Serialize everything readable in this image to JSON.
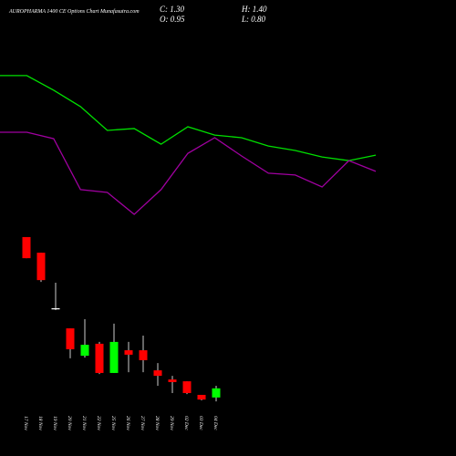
{
  "chart_data": [
    {
      "type": "line",
      "ylim": [
        0,
        16
      ],
      "series": [
        {
          "color": "#00e000",
          "values": [
            13.29,
            13.29,
            12.73,
            12.1,
            11.19,
            11.26,
            10.66,
            11.33,
            11.01,
            10.91,
            10.59,
            10.42,
            10.17,
            10.03,
            10.24
          ]
        },
        {
          "color": "#a000a0",
          "values": [
            11.12,
            11.12,
            10.87,
            8.92,
            8.81,
            7.97,
            8.92,
            10.31,
            10.91,
            10.21,
            9.55,
            9.48,
            9.02,
            10.03,
            9.62
          ]
        }
      ]
    },
    {
      "type": "candlestick",
      "title": "AUROPHARMA 1400 CE Options Chart Munafasutra.com",
      "ohlc_labels": [
        "C: 1.30",
        "H: 1.40",
        "O: 0.95",
        "L: 0.80"
      ],
      "ylim": [
        0,
        16
      ],
      "up_color": "#00ff00",
      "down_color": "#ff0000",
      "categories": [
        "17 Nov",
        "18 Nov",
        "19 Nov",
        "20 Nov",
        "21 Nov",
        "22 Nov",
        "25 Nov",
        "26 Nov",
        "27 Nov",
        "28 Nov",
        "29 Nov",
        "02 Dec",
        "03 Dec",
        "04 Dec"
      ],
      "open": [
        7.1,
        6.5,
        4.37,
        3.6,
        2.55,
        3.01,
        1.89,
        2.76,
        2.76,
        1.99,
        1.64,
        1.57,
        1.05,
        0.95
      ],
      "high": [
        7.1,
        6.5,
        5.35,
        3.6,
        3.95,
        3.08,
        3.78,
        3.08,
        3.32,
        2.27,
        1.78,
        1.57,
        1.05,
        1.4
      ],
      "low": [
        6.29,
        5.38,
        4.3,
        2.45,
        2.48,
        1.85,
        1.89,
        1.92,
        1.92,
        1.4,
        1.12,
        1.08,
        0.84,
        0.8
      ],
      "close": [
        6.29,
        5.45,
        4.37,
        2.8,
        2.97,
        1.89,
        3.08,
        2.59,
        2.38,
        1.78,
        1.54,
        1.12,
        0.87,
        1.3
      ]
    }
  ]
}
